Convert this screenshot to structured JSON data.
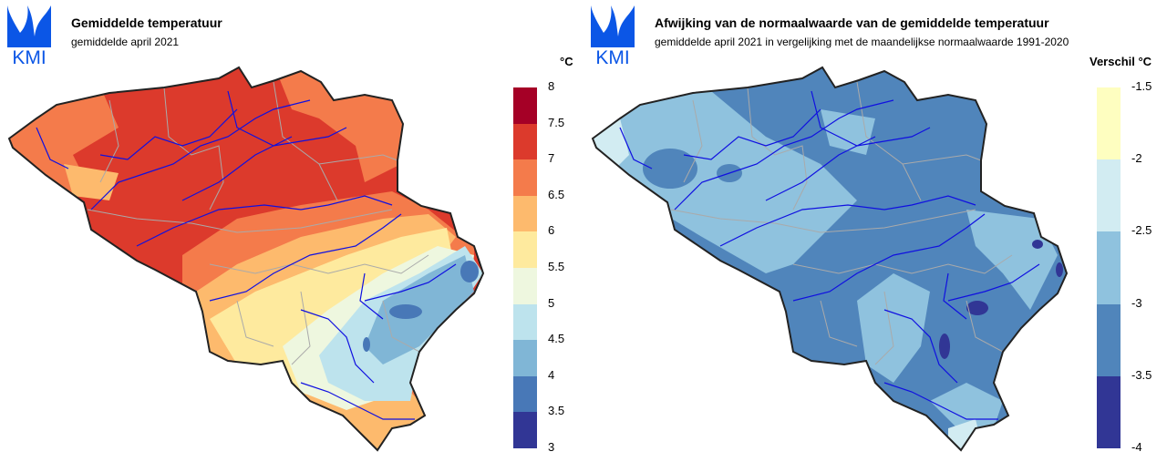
{
  "logo_text": "KMI",
  "left": {
    "title": "Gemiddelde temperatuur",
    "subtitle": "gemiddelde april 2021",
    "unit": "°C",
    "legend": {
      "ticks": [
        "8",
        "7.5",
        "7",
        "6.5",
        "6",
        "5.5",
        "5",
        "4.5",
        "4",
        "3.5",
        "3"
      ],
      "colors": [
        "#a50026",
        "#dc3a2c",
        "#f47b4b",
        "#fdba6d",
        "#feea9e",
        "#eef7df",
        "#bde3ed",
        "#80b6d6",
        "#4878b7",
        "#313695"
      ]
    }
  },
  "right": {
    "title": "Afwijking van de normaalwaarde van de gemiddelde temperatuur",
    "subtitle": "gemiddelde april 2021 in vergelijking met de maandelijkse normaalwaarde 1991-2020",
    "unit": "Verschil °C",
    "legend": {
      "ticks": [
        "-1.5",
        "-2",
        "-2.5",
        "-3",
        "-3.5",
        "-4"
      ],
      "colors": [
        "#fefec0",
        "#d2ecf2",
        "#8fc2de",
        "#5085bb",
        "#313695"
      ]
    }
  }
}
